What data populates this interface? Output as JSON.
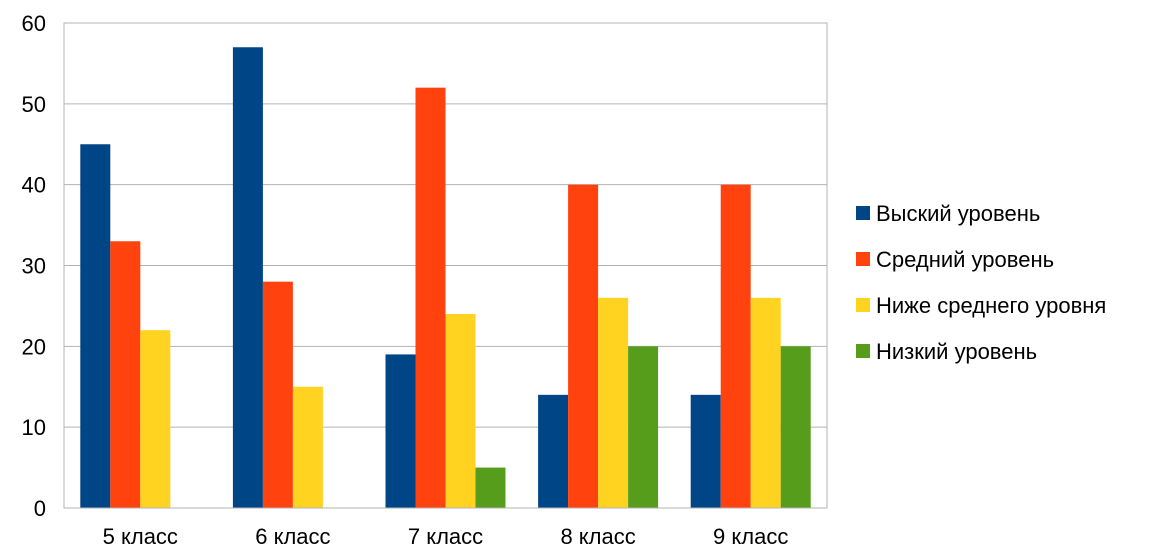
{
  "chart_data": {
    "type": "bar",
    "title": "",
    "xlabel": "",
    "ylabel": "",
    "categories": [
      "5 класс",
      "6 класс",
      "7 класс",
      "8 класс",
      "9 класс"
    ],
    "series": [
      {
        "name": "Выский уровень",
        "color": "#004586",
        "values": [
          45,
          57,
          19,
          14,
          14
        ]
      },
      {
        "name": "Средний уровень",
        "color": "#FF420E",
        "values": [
          33,
          28,
          52,
          40,
          40
        ]
      },
      {
        "name": "Ниже среднего уровня",
        "color": "#FFD320",
        "values": [
          22,
          15,
          24,
          26,
          26
        ]
      },
      {
        "name": "Низкий уровень",
        "color": "#579D1C",
        "values": [
          0,
          0,
          5,
          20,
          20
        ]
      }
    ],
    "ylim": [
      0,
      60
    ],
    "yticks": [
      0,
      10,
      20,
      30,
      40,
      50,
      60
    ],
    "grid": true,
    "legend_position": "right"
  }
}
